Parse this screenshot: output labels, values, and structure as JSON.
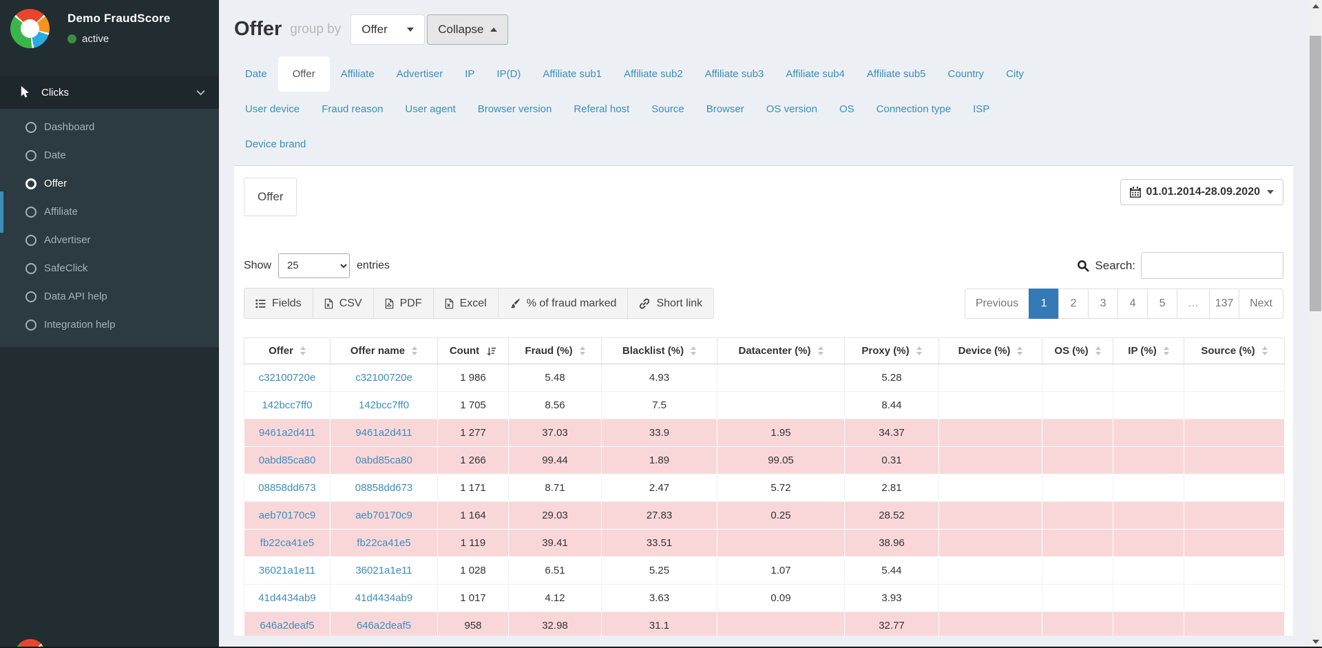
{
  "colors": {
    "accent_link": "#3c8dbc",
    "pagination_active": "#337ab7",
    "flagged_row_bg": "#f9d7d9",
    "status_green": "#3e8e41",
    "sidebar_bg": "#222d32"
  },
  "sidebar": {
    "brand": "Demo FraudScore",
    "status": "active",
    "section": "Clicks",
    "items": [
      "Dashboard",
      "Date",
      "Offer",
      "Affiliate",
      "Advertiser",
      "SafeClick",
      "Data API help",
      "Integration help"
    ],
    "active_item": "Offer"
  },
  "header": {
    "title": "Offer",
    "group_by_label": "group by",
    "group_by_value": "Offer",
    "collapse_label": "Collapse"
  },
  "tabs": {
    "rows": [
      [
        "Date",
        "Offer",
        "Affiliate",
        "Advertiser",
        "IP",
        "IP(D)",
        "Affiliate sub1",
        "Affiliate sub2",
        "Affiliate sub3",
        "Affiliate sub4",
        "Affiliate sub5",
        "Country",
        "City"
      ],
      [
        "User device",
        "Fraud reason",
        "User agent",
        "Browser version",
        "Referal host",
        "Source",
        "Browser",
        "OS version",
        "OS",
        "Connection type",
        "ISP"
      ],
      [
        "Device brand"
      ]
    ],
    "active": "Offer"
  },
  "panel": {
    "tab_label": "Offer",
    "date_range": "01.01.2014-28.09.2020"
  },
  "controls": {
    "show_label": "Show",
    "page_size": "25",
    "entries_label": "entries",
    "search_label": "Search:",
    "search_value": ""
  },
  "toolbar": {
    "buttons": [
      {
        "icon": "list",
        "label": "Fields"
      },
      {
        "icon": "file-csv",
        "label": "CSV"
      },
      {
        "icon": "file-pdf",
        "label": "PDF"
      },
      {
        "icon": "file-excel",
        "label": "Excel"
      },
      {
        "icon": "paintbrush",
        "label": "% of fraud marked"
      },
      {
        "icon": "shortlink",
        "label": "Short link"
      }
    ]
  },
  "pagination": {
    "items": [
      "Previous",
      "1",
      "2",
      "3",
      "4",
      "5",
      "…",
      "137",
      "Next"
    ],
    "active": "1"
  },
  "table": {
    "columns": [
      {
        "label": "Offer",
        "field": "offer",
        "sort": "both"
      },
      {
        "label": "Offer name",
        "field": "offer_name",
        "sort": "both"
      },
      {
        "label": "Count",
        "field": "count",
        "sort": "amount-desc"
      },
      {
        "label": "Fraud (%)",
        "field": "fraud",
        "sort": "both"
      },
      {
        "label": "Blacklist (%)",
        "field": "blacklist",
        "sort": "both"
      },
      {
        "label": "Datacenter (%)",
        "field": "datacenter",
        "sort": "both"
      },
      {
        "label": "Proxy (%)",
        "field": "proxy",
        "sort": "both"
      },
      {
        "label": "Device (%)",
        "field": "device",
        "sort": "both"
      },
      {
        "label": "OS (%)",
        "field": "os",
        "sort": "both"
      },
      {
        "label": "IP (%)",
        "field": "ip",
        "sort": "both"
      },
      {
        "label": "Source (%)",
        "field": "source",
        "sort": "both"
      }
    ],
    "rows": [
      {
        "offer": "c32100720e",
        "offer_name": "c32100720e",
        "count": "1 986",
        "fraud": "5.48",
        "blacklist": "4.93",
        "datacenter": "",
        "proxy": "5.28",
        "device": "",
        "os": "",
        "ip": "",
        "source": "",
        "flagged": false
      },
      {
        "offer": "142bcc7ff0",
        "offer_name": "142bcc7ff0",
        "count": "1 705",
        "fraud": "8.56",
        "blacklist": "7.5",
        "datacenter": "",
        "proxy": "8.44",
        "device": "",
        "os": "",
        "ip": "",
        "source": "",
        "flagged": false
      },
      {
        "offer": "9461a2d411",
        "offer_name": "9461a2d411",
        "count": "1 277",
        "fraud": "37.03",
        "blacklist": "33.9",
        "datacenter": "1.95",
        "proxy": "34.37",
        "device": "",
        "os": "",
        "ip": "",
        "source": "",
        "flagged": true
      },
      {
        "offer": "0abd85ca80",
        "offer_name": "0abd85ca80",
        "count": "1 266",
        "fraud": "99.44",
        "blacklist": "1.89",
        "datacenter": "99.05",
        "proxy": "0.31",
        "device": "",
        "os": "",
        "ip": "",
        "source": "",
        "flagged": true
      },
      {
        "offer": "08858dd673",
        "offer_name": "08858dd673",
        "count": "1 171",
        "fraud": "8.71",
        "blacklist": "2.47",
        "datacenter": "5.72",
        "proxy": "2.81",
        "device": "",
        "os": "",
        "ip": "",
        "source": "",
        "flagged": false
      },
      {
        "offer": "aeb70170c9",
        "offer_name": "aeb70170c9",
        "count": "1 164",
        "fraud": "29.03",
        "blacklist": "27.83",
        "datacenter": "0.25",
        "proxy": "28.52",
        "device": "",
        "os": "",
        "ip": "",
        "source": "",
        "flagged": true
      },
      {
        "offer": "fb22ca41e5",
        "offer_name": "fb22ca41e5",
        "count": "1 119",
        "fraud": "39.41",
        "blacklist": "33.51",
        "datacenter": "",
        "proxy": "38.96",
        "device": "",
        "os": "",
        "ip": "",
        "source": "",
        "flagged": true
      },
      {
        "offer": "36021a1e11",
        "offer_name": "36021a1e11",
        "count": "1 028",
        "fraud": "6.51",
        "blacklist": "5.25",
        "datacenter": "1.07",
        "proxy": "5.44",
        "device": "",
        "os": "",
        "ip": "",
        "source": "",
        "flagged": false
      },
      {
        "offer": "41d4434ab9",
        "offer_name": "41d4434ab9",
        "count": "1 017",
        "fraud": "4.12",
        "blacklist": "3.63",
        "datacenter": "0.09",
        "proxy": "3.93",
        "device": "",
        "os": "",
        "ip": "",
        "source": "",
        "flagged": false
      },
      {
        "offer": "646a2deaf5",
        "offer_name": "646a2deaf5",
        "count": "958",
        "fraud": "32.98",
        "blacklist": "31.1",
        "datacenter": "",
        "proxy": "32.77",
        "device": "",
        "os": "",
        "ip": "",
        "source": "",
        "flagged": true
      }
    ]
  }
}
